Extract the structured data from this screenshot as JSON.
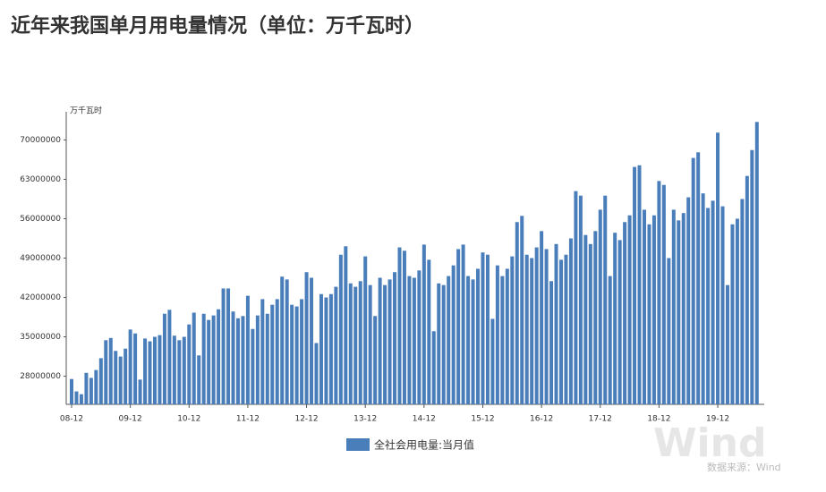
{
  "chart_data": {
    "type": "bar",
    "title": "近年来我国单月用电量情况（单位：万千瓦时）",
    "y_label": "万千瓦时",
    "source": "数据来源：Wind",
    "watermark": "Wind",
    "categories": [
      "08-12",
      null,
      null,
      null,
      null,
      null,
      null,
      null,
      null,
      null,
      null,
      null,
      "09-12",
      null,
      null,
      null,
      null,
      null,
      null,
      null,
      null,
      null,
      null,
      null,
      "10-12",
      null,
      null,
      null,
      null,
      null,
      null,
      null,
      null,
      null,
      null,
      null,
      "11-12",
      null,
      null,
      null,
      null,
      null,
      null,
      null,
      null,
      null,
      null,
      null,
      "12-12",
      null,
      null,
      null,
      null,
      null,
      null,
      null,
      null,
      null,
      null,
      null,
      "13-12",
      null,
      null,
      null,
      null,
      null,
      null,
      null,
      null,
      null,
      null,
      null,
      "14-12",
      null,
      null,
      null,
      null,
      null,
      null,
      null,
      null,
      null,
      null,
      null,
      "15-12",
      null,
      null,
      null,
      null,
      null,
      null,
      null,
      null,
      null,
      null,
      null,
      "16-12",
      null,
      null,
      null,
      null,
      null,
      null,
      null,
      null,
      null,
      null,
      null,
      "17-12",
      null,
      null,
      null,
      null,
      null,
      null,
      null,
      null,
      null,
      null,
      null,
      "18-12",
      null,
      null,
      null,
      null,
      null,
      null,
      null,
      null,
      null,
      null,
      null,
      "19-12",
      null,
      null,
      null,
      null,
      null,
      null,
      null,
      null
    ],
    "series": [
      {
        "name": "全社会用电量:当月值",
        "color": "#4a7ebb",
        "values": [
          27500000,
          25300000,
          24800000,
          28600000,
          27700000,
          29100000,
          31200000,
          34400000,
          34800000,
          32500000,
          31500000,
          32900000,
          36300000,
          35600000,
          27400000,
          34700000,
          34200000,
          35000000,
          35300000,
          39100000,
          39800000,
          35200000,
          34400000,
          35000000,
          37200000,
          39300000,
          31700000,
          39100000,
          38000000,
          38800000,
          39900000,
          43600000,
          43600000,
          39500000,
          38300000,
          38700000,
          42300000,
          36400000,
          38800000,
          41700000,
          39100000,
          40700000,
          41700000,
          45700000,
          45200000,
          40700000,
          40400000,
          41700000,
          46500000,
          45500000,
          33900000,
          42600000,
          42000000,
          42600000,
          43900000,
          49600000,
          51100000,
          44500000,
          43900000,
          44900000,
          49300000,
          44200000,
          38700000,
          45500000,
          44200000,
          45200000,
          46500000,
          50900000,
          50300000,
          45800000,
          45500000,
          46800000,
          51400000,
          48700000,
          36000000,
          44500000,
          44200000,
          45800000,
          47700000,
          50600000,
          51400000,
          45800000,
          45200000,
          47100000,
          50000000,
          49600000,
          38200000,
          47700000,
          45800000,
          47100000,
          49300000,
          55400000,
          56500000,
          49600000,
          49000000,
          50900000,
          53800000,
          50600000,
          44900000,
          51500000,
          48700000,
          49600000,
          52500000,
          60900000,
          60100000,
          53100000,
          51500000,
          53800000,
          57600000,
          60100000,
          45800000,
          53500000,
          52200000,
          55400000,
          56600000,
          65200000,
          65500000,
          57600000,
          55000000,
          56600000,
          62700000,
          62000000,
          49000000,
          57600000,
          55700000,
          57000000,
          59800000,
          66800000,
          67800000,
          60500000,
          57900000,
          59200000,
          71300000,
          58200000,
          44200000,
          55000000,
          56000000,
          59500000,
          63600000,
          68200000,
          73200000
        ]
      }
    ],
    "ylim": [
      23000000,
      75000000
    ],
    "yticks": [
      28000000,
      35000000,
      42000000,
      49000000,
      56000000,
      63000000,
      70000000
    ],
    "grid": false
  }
}
